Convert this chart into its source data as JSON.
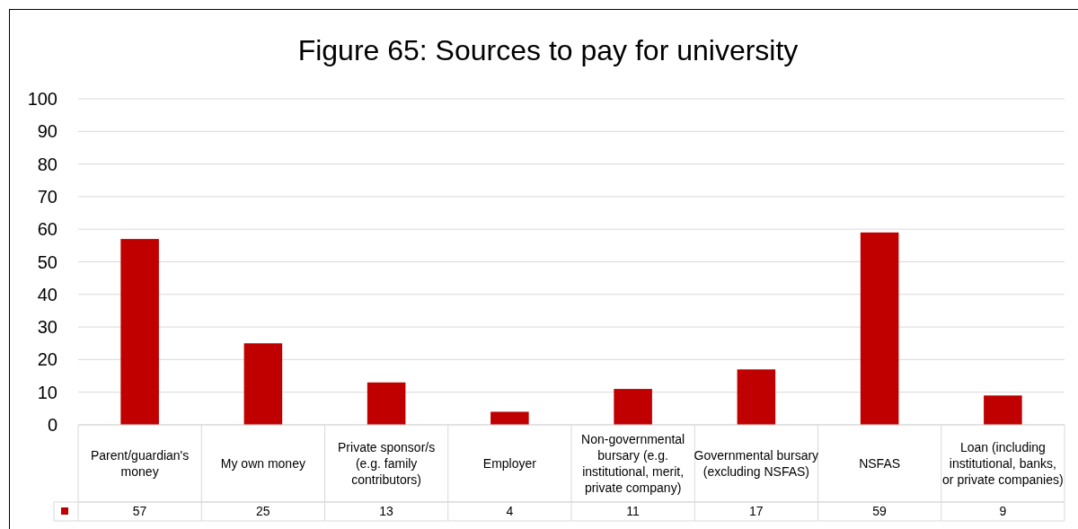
{
  "chart_data": {
    "type": "bar",
    "title": "Figure 65: Sources to pay for university",
    "categories": [
      "Parent/guardian's money",
      "My own money",
      "Private sponsor/s (e.g. family contributors)",
      "Employer",
      "Non-governmental bursary (e.g. institutional, merit, private company)",
      "Governmental bursary (excluding NSFAS)",
      "NSFAS",
      "Loan (including institutional, banks, or private companies)"
    ],
    "values": [
      57,
      25,
      13,
      4,
      11,
      17,
      59,
      9
    ],
    "color": "#c00000",
    "ylim": [
      0,
      100
    ],
    "yticks": [
      0,
      10,
      20,
      30,
      40,
      50,
      60,
      70,
      80,
      90,
      100
    ],
    "grid": "y",
    "data_labels": true
  }
}
